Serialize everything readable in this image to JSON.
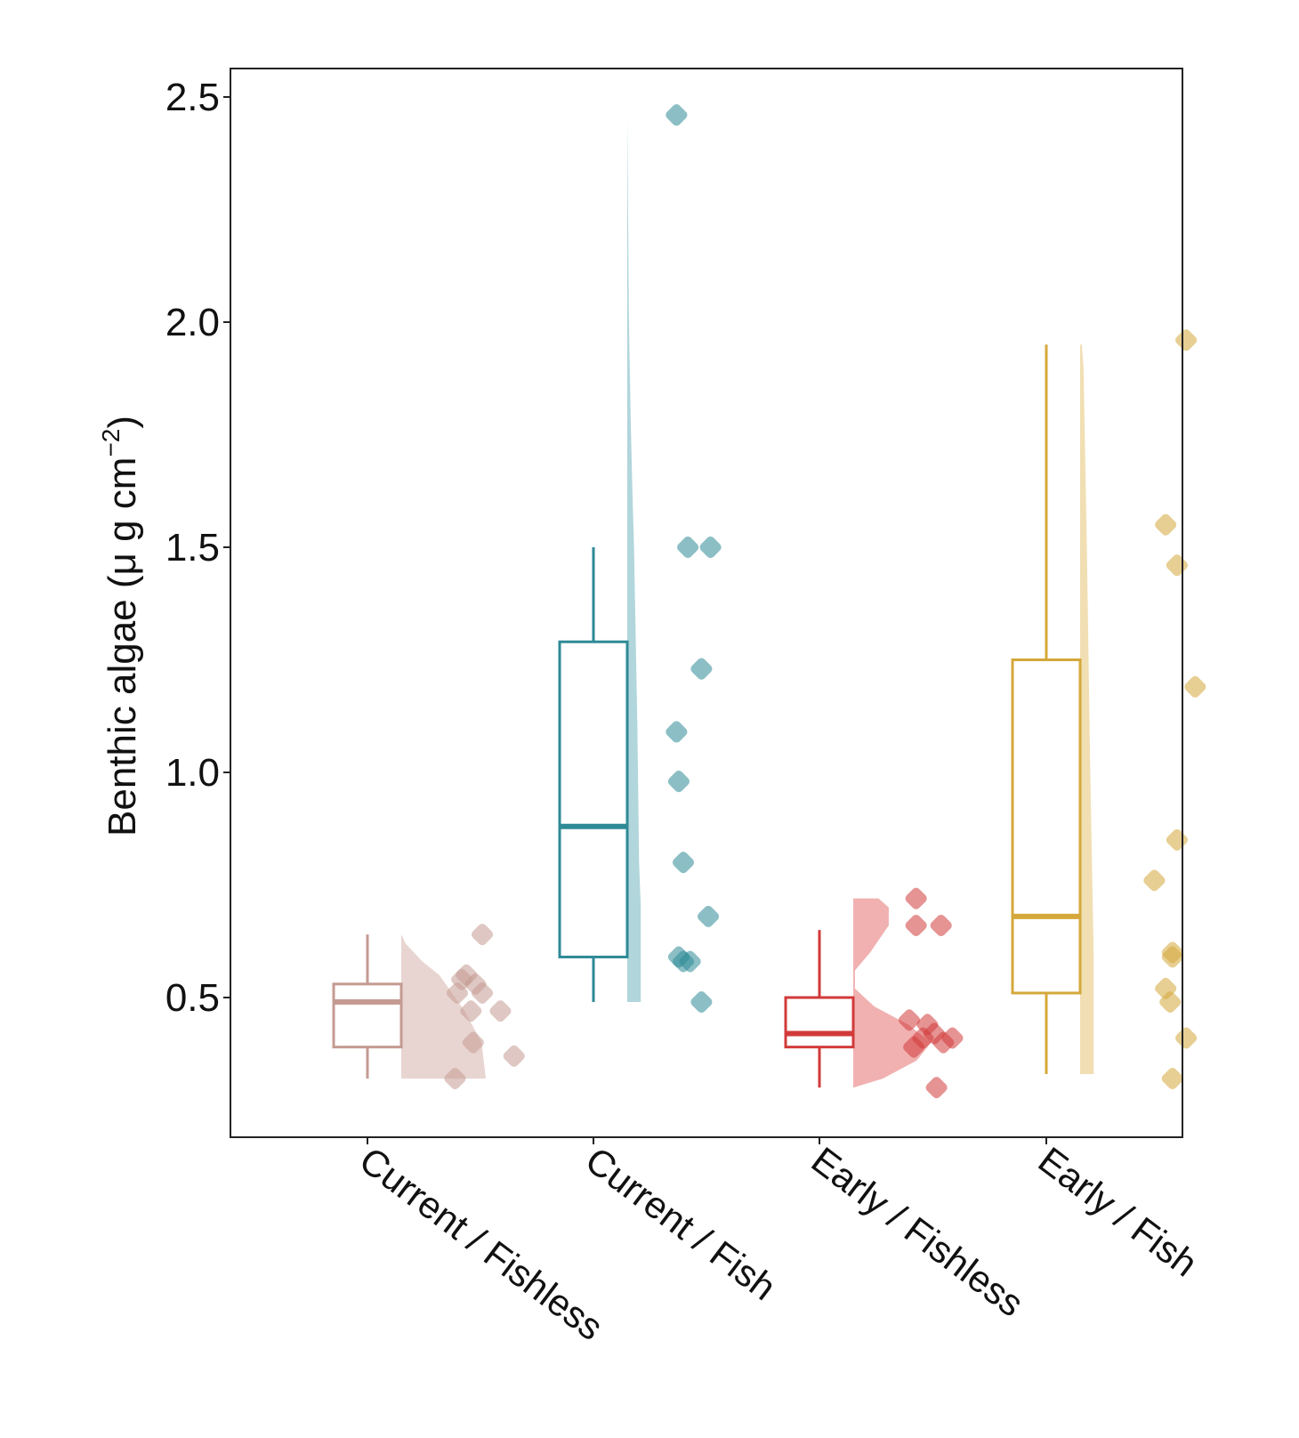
{
  "chart_data": {
    "type": "boxplot-raincloud",
    "title": "",
    "xlabel": "",
    "ylabel": "Benthic algae (μ g cm",
    "ylabel_superscript": "−2",
    "ylabel_suffix": ")",
    "ylim": [
      0.19,
      2.56
    ],
    "yticks": [
      0.5,
      1.0,
      1.5,
      2.0,
      2.5
    ],
    "ytick_labels": [
      "0.5",
      "1.0",
      "1.5",
      "2.0",
      "2.5"
    ],
    "grid": false,
    "legend": "none",
    "categories": [
      "Current / Fishless",
      "Current / Fish",
      "Early / Fishless",
      "Early / Fish"
    ],
    "series": [
      {
        "name": "Current / Fishless",
        "color": "#c49a92",
        "fill_color": "#e6d0cc",
        "box": {
          "whisker_low": 0.32,
          "q1": 0.39,
          "median": 0.49,
          "q3": 0.53,
          "whisker_high": 0.64
        },
        "density_shape": [
          [
            0.32,
            1.0
          ],
          [
            0.4,
            0.95
          ],
          [
            0.47,
            0.75
          ],
          [
            0.51,
            0.6
          ],
          [
            0.55,
            0.45
          ],
          [
            0.58,
            0.25
          ],
          [
            0.62,
            0.05
          ],
          [
            0.64,
            0.0
          ]
        ],
        "points": [
          0.64,
          0.55,
          0.54,
          0.53,
          0.51,
          0.51,
          0.47,
          0.47,
          0.4,
          0.37,
          0.32
        ],
        "point_offsets": [
          0.62,
          0.48,
          0.44,
          0.56,
          0.4,
          0.62,
          0.78,
          0.52,
          0.54,
          0.9,
          0.38
        ]
      },
      {
        "name": "Current / Fish",
        "color": "#2e8a96",
        "fill_color": "#a9d2d8",
        "box": {
          "whisker_low": 0.49,
          "q1": 0.59,
          "median": 0.88,
          "q3": 1.29,
          "whisker_high": 1.5
        },
        "density_shape": [
          [
            0.49,
            0.16
          ],
          [
            0.7,
            0.16
          ],
          [
            0.8,
            0.14
          ],
          [
            1.1,
            0.12
          ],
          [
            1.3,
            0.1
          ],
          [
            1.5,
            0.08
          ],
          [
            1.63,
            0.06
          ],
          [
            1.79,
            0.04
          ],
          [
            2.0,
            0.02
          ],
          [
            2.46,
            0.0
          ]
        ],
        "points": [
          2.46,
          1.5,
          1.5,
          1.23,
          1.09,
          0.98,
          0.8,
          0.68,
          0.59,
          0.58,
          0.58,
          0.49
        ],
        "point_offsets": [
          0.34,
          0.44,
          0.64,
          0.56,
          0.34,
          0.36,
          0.4,
          0.62,
          0.36,
          0.4,
          0.46,
          0.56
        ]
      },
      {
        "name": "Early / Fishless",
        "color": "#d23a3a",
        "fill_color": "#f0a8a8",
        "box": {
          "whisker_low": 0.3,
          "q1": 0.39,
          "median": 0.42,
          "q3": 0.5,
          "whisker_high": 0.65
        },
        "density_shape": [
          [
            0.3,
            0.0
          ],
          [
            0.32,
            0.35
          ],
          [
            0.36,
            0.75
          ],
          [
            0.4,
            0.92
          ],
          [
            0.44,
            0.65
          ],
          [
            0.48,
            0.25
          ],
          [
            0.52,
            0.02
          ],
          [
            0.56,
            0.02
          ],
          [
            0.6,
            0.2
          ],
          [
            0.66,
            0.42
          ],
          [
            0.7,
            0.42
          ],
          [
            0.72,
            0.3
          ]
        ],
        "points": [
          0.72,
          0.66,
          0.66,
          0.45,
          0.44,
          0.42,
          0.41,
          0.4,
          0.41,
          0.39,
          0.3
        ],
        "point_offsets": [
          0.46,
          0.46,
          0.68,
          0.4,
          0.56,
          0.62,
          0.52,
          0.7,
          0.78,
          0.44,
          0.64
        ]
      },
      {
        "name": "Early / Fish",
        "color": "#d4a83a",
        "fill_color": "#efdcab",
        "box": {
          "whisker_low": 0.33,
          "q1": 0.51,
          "median": 0.68,
          "q3": 1.25,
          "whisker_high": 1.95
        },
        "density_shape": [
          [
            0.33,
            0.16
          ],
          [
            0.6,
            0.16
          ],
          [
            0.8,
            0.14
          ],
          [
            1.0,
            0.12
          ],
          [
            1.25,
            0.1
          ],
          [
            1.5,
            0.08
          ],
          [
            1.7,
            0.06
          ],
          [
            1.9,
            0.04
          ],
          [
            1.95,
            0.02
          ]
        ],
        "points": [
          1.96,
          1.55,
          1.46,
          1.19,
          0.85,
          0.76,
          0.6,
          0.59,
          0.52,
          0.49,
          0.41,
          0.32
        ],
        "point_offsets": [
          0.84,
          0.66,
          0.76,
          0.92,
          0.76,
          0.56,
          0.72,
          0.72,
          0.66,
          0.7,
          0.84,
          0.72
        ]
      }
    ]
  }
}
